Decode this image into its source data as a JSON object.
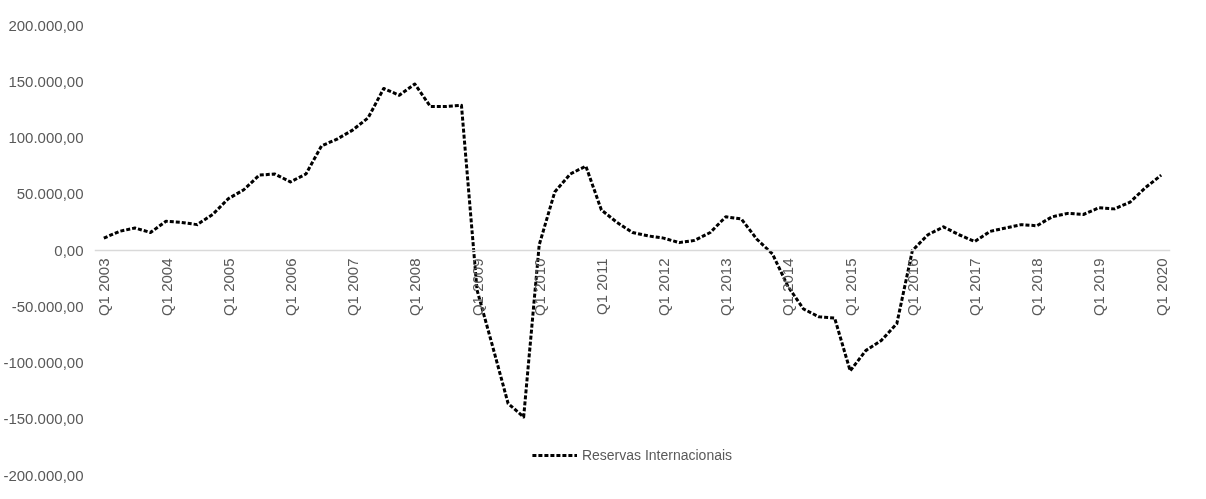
{
  "chart_data": {
    "type": "line",
    "categories": [
      "Q1 2003",
      null,
      null,
      null,
      "Q1 2004",
      null,
      null,
      null,
      "Q1 2005",
      null,
      null,
      null,
      "Q1 2006",
      null,
      null,
      null,
      "Q1 2007",
      null,
      null,
      null,
      "Q1 2008",
      null,
      null,
      null,
      "Q1 2009",
      null,
      null,
      null,
      "Q1 2010",
      null,
      null,
      null,
      "Q1 2011",
      null,
      null,
      null,
      "Q1 2012",
      null,
      null,
      null,
      "Q1 2013",
      null,
      null,
      null,
      "Q1 2014",
      null,
      null,
      null,
      "Q1 2015",
      null,
      null,
      null,
      "Q1 2016",
      null,
      null,
      null,
      "Q1 2017",
      null,
      null,
      null,
      "Q1 2018",
      null,
      null,
      null,
      "Q1 2019",
      null,
      null,
      null,
      "Q1 2020"
    ],
    "series": [
      {
        "name": "Reservas Internacionais",
        "color": "#000000",
        "values": [
          11000,
          17000,
          20000,
          16000,
          26000,
          25000,
          23000,
          32000,
          46000,
          54000,
          67000,
          68000,
          61000,
          68000,
          93000,
          99000,
          107000,
          118000,
          144000,
          138000,
          148000,
          128000,
          128000,
          129000,
          -35000,
          -85000,
          -136000,
          -148000,
          5000,
          52000,
          68000,
          75000,
          36000,
          25000,
          16000,
          13000,
          11000,
          7000,
          9000,
          16000,
          30000,
          28000,
          10000,
          -3000,
          -32000,
          -52000,
          -59000,
          -60000,
          -107000,
          -89000,
          -80000,
          -65000,
          0,
          14000,
          21000,
          14000,
          8000,
          17000,
          20000,
          23000,
          22000,
          30000,
          33000,
          32000,
          38000,
          37000,
          43000,
          56000,
          67000
        ]
      }
    ],
    "ylim": [
      -200000,
      200000
    ],
    "yticks": [
      {
        "value": -200000,
        "label": "-200.000,00"
      },
      {
        "value": -150000,
        "label": "-150.000,00"
      },
      {
        "value": -100000,
        "label": "-100.000,00"
      },
      {
        "value": -50000,
        "label": "-50.000,00"
      },
      {
        "value": 0,
        "label": "0,00"
      },
      {
        "value": 50000,
        "label": "50.000,00"
      },
      {
        "value": 100000,
        "label": "100.000,00"
      },
      {
        "value": 150000,
        "label": "150.000,00"
      },
      {
        "value": 200000,
        "label": "200.000,00"
      }
    ],
    "grid": false,
    "legend": "bottom",
    "line_style": "dashed",
    "marker": "none"
  }
}
